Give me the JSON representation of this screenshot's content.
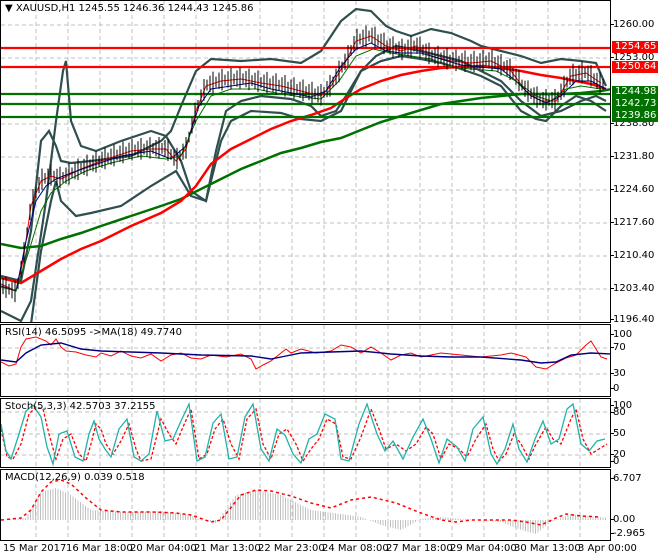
{
  "header": {
    "symbol": "XAUUSD,H1",
    "ohlc": "1245.55 1246.36 1244.43 1245.86",
    "title": "XAUUSD,H1  1245.55 1246.36 1244.43 1245.86"
  },
  "main_axis": {
    "ticks": [
      "1260.00",
      "1253.00",
      "1238.80",
      "1231.80",
      "1224.60",
      "1217.60",
      "1210.40",
      "1203.40",
      "1196.40"
    ],
    "price_labels": [
      {
        "value": "1254.65",
        "color": "#ff0000"
      },
      {
        "value": "1250.64",
        "color": "#ff0000"
      },
      {
        "value": "1244.98",
        "color": "#007000"
      },
      {
        "value": "1242.73",
        "color": "#007000"
      },
      {
        "value": "1239.86",
        "color": "#007000"
      }
    ]
  },
  "rsi": {
    "title": "RSI(14) 46.5095  ->MA(18) 49.7740",
    "ticks": [
      "100",
      "70",
      "30",
      "0"
    ]
  },
  "stoch": {
    "title": "Stoch(5,3,3) 42.5703 37.2155",
    "ticks": [
      "100",
      "80",
      "50",
      "20",
      "0"
    ]
  },
  "macd": {
    "title": "MACD(12,26,9) 0.039 0.518",
    "ticks": [
      "6.707",
      "0.00",
      "-2.965"
    ]
  },
  "time_axis": {
    "labels": [
      "15 Mar 2017",
      "16 Mar 18:00",
      "20 Mar 04:00",
      "21 Mar 13:00",
      "22 Mar 23:00",
      "24 Mar 08:00",
      "27 Mar 18:00",
      "29 Mar 04:00",
      "30 Mar 13:00",
      "3 Apr 00:00"
    ]
  },
  "colors": {
    "resistance": "#ff0000",
    "support": "#007000",
    "bollinger": "#2f4f4f",
    "rsi_line": "#ff0000",
    "rsi_ma": "#000080",
    "stoch_main": "#20b2aa",
    "stoch_signal": "#ff0000",
    "macd_hist": "#c0c0c0",
    "macd_signal": "#ff0000"
  },
  "chart_data": [
    {
      "type": "line",
      "title": "XAUUSD,H1",
      "subtitle": "O 1245.55 H 1246.36 L 1244.43 C 1245.86",
      "x": [
        "15 Mar 2017",
        "16 Mar 18:00",
        "20 Mar 04:00",
        "21 Mar 13:00",
        "22 Mar 23:00",
        "24 Mar 08:00",
        "27 Mar 18:00",
        "29 Mar 04:00",
        "30 Mar 13:00",
        "3 Apr 00:00"
      ],
      "series": [
        {
          "name": "Close (approx)",
          "values": [
            1200.5,
            1228.0,
            1230.0,
            1247.0,
            1245.0,
            1258.0,
            1254.0,
            1251.0,
            1242.0,
            1245.86
          ]
        },
        {
          "name": "MA red (slow)",
          "values": [
            1205.0,
            1218.0,
            1225.0,
            1232.0,
            1240.0,
            1244.0,
            1248.5,
            1250.0,
            1248.0,
            1246.0
          ]
        },
        {
          "name": "MA green (slowest)",
          "values": [
            1214.0,
            1217.0,
            1221.0,
            1226.0,
            1232.0,
            1236.5,
            1241.0,
            1243.5,
            1245.0,
            1245.0
          ]
        }
      ],
      "horizontal_levels": [
        {
          "value": 1254.65,
          "type": "resistance"
        },
        {
          "value": 1250.64,
          "type": "resistance"
        },
        {
          "value": 1244.98,
          "type": "support"
        },
        {
          "value": 1242.73,
          "type": "support"
        },
        {
          "value": 1239.86,
          "type": "support"
        }
      ],
      "ylim": [
        1196.4,
        1265.0
      ],
      "grid": true,
      "xlabel": "",
      "ylabel": ""
    },
    {
      "type": "line",
      "title": "RSI(14) 46.5095 ->MA(18) 49.7740",
      "x": [
        "15 Mar 2017",
        "16 Mar 18:00",
        "20 Mar 04:00",
        "21 Mar 13:00",
        "22 Mar 23:00",
        "24 Mar 08:00",
        "27 Mar 18:00",
        "29 Mar 04:00",
        "30 Mar 13:00",
        "3 Apr 00:00"
      ],
      "series": [
        {
          "name": "RSI(14)",
          "values": [
            42,
            70,
            58,
            60,
            55,
            60,
            54,
            52,
            40,
            46.5
          ]
        },
        {
          "name": "MA(18)",
          "values": [
            44,
            62,
            58,
            56,
            55,
            58,
            55,
            52,
            44,
            49.8
          ]
        }
      ],
      "ylim": [
        0,
        100
      ],
      "levels": [
        70,
        30
      ],
      "grid": true
    },
    {
      "type": "line",
      "title": "Stoch(5,3,3) 42.5703 37.2155",
      "series": [
        {
          "name": "%K",
          "values": [
            15,
            90,
            20,
            80,
            10,
            90,
            10,
            85,
            20,
            95,
            10,
            90,
            25,
            42.57
          ]
        },
        {
          "name": "%D",
          "values": [
            20,
            85,
            25,
            75,
            15,
            85,
            15,
            80,
            25,
            90,
            15,
            85,
            30,
            37.22
          ]
        }
      ],
      "ylim": [
        0,
        100
      ],
      "levels": [
        80,
        50,
        20
      ],
      "grid": true
    },
    {
      "type": "bar",
      "title": "MACD(12,26,9) 0.039 0.518",
      "categories": [
        "15 Mar 2017",
        "16 Mar 18:00",
        "20 Mar 04:00",
        "21 Mar 13:00",
        "22 Mar 23:00",
        "24 Mar 08:00",
        "27 Mar 18:00",
        "29 Mar 04:00",
        "30 Mar 13:00",
        "3 Apr 00:00"
      ],
      "series": [
        {
          "name": "MACD histogram",
          "values": [
            0.0,
            6.5,
            2.5,
            1.5,
            4.5,
            0.5,
            2.8,
            -1.5,
            -2.9,
            0.04
          ]
        },
        {
          "name": "Signal",
          "values": [
            -0.5,
            5.0,
            2.0,
            1.8,
            3.5,
            1.0,
            2.2,
            -1.0,
            -2.5,
            0.52
          ]
        }
      ],
      "ylim": [
        -2.965,
        6.707
      ],
      "grid": true
    }
  ]
}
